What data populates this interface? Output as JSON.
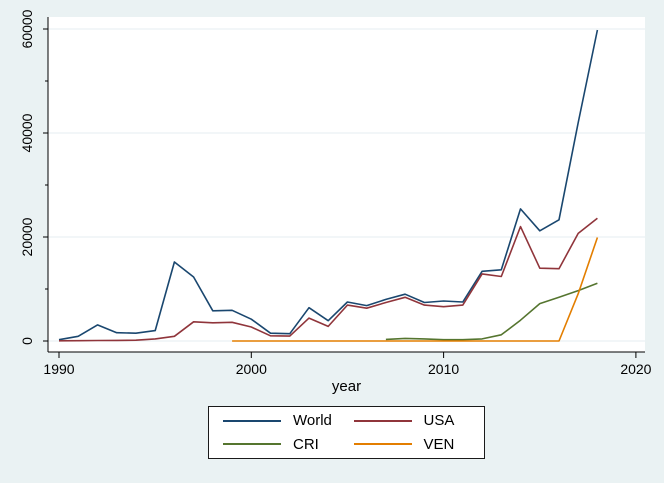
{
  "figure": {
    "background": "#eaf2f3",
    "plot_background": "#ffffff",
    "grid_color": "#e6edf0",
    "axis_color": "#000000",
    "text_color": "#000000",
    "legend_border_color": "#1a1a1a"
  },
  "chart_data": {
    "type": "line",
    "title": "",
    "xlabel": "year",
    "ylabel": "",
    "xlim": [
      1990,
      2020
    ],
    "ylim": [
      0,
      60000
    ],
    "x_ticks": [
      1990,
      2000,
      2010,
      2020
    ],
    "y_ticks": [
      0,
      20000,
      40000,
      60000
    ],
    "y_minor_ticks": [
      10000,
      30000,
      50000
    ],
    "grid": true,
    "legend_position": "bottom-center-boxed",
    "x": [
      1990,
      1991,
      1992,
      1993,
      1994,
      1995,
      1996,
      1997,
      1998,
      1999,
      2000,
      2001,
      2002,
      2003,
      2004,
      2005,
      2006,
      2007,
      2008,
      2009,
      2010,
      2011,
      2012,
      2013,
      2014,
      2015,
      2016,
      2017,
      2018
    ],
    "series": [
      {
        "name": "World",
        "color": "#1a476f",
        "values": [
          250,
          900,
          3100,
          1600,
          1500,
          2000,
          15200,
          12300,
          5800,
          5900,
          4200,
          1500,
          1400,
          6400,
          3900,
          7500,
          6800,
          8000,
          9000,
          7400,
          7700,
          7500,
          13400,
          13700,
          25400,
          21200,
          23300,
          42000,
          59800
        ]
      },
      {
        "name": "USA",
        "color": "#90353b",
        "values": [
          30,
          60,
          90,
          110,
          150,
          400,
          900,
          3700,
          3500,
          3600,
          2700,
          1000,
          950,
          4400,
          2800,
          6900,
          6300,
          7400,
          8400,
          6900,
          6600,
          6900,
          12900,
          12400,
          22000,
          14000,
          13900,
          20700,
          23600
        ]
      },
      {
        "name": "CRI",
        "color": "#55752f",
        "values": [
          null,
          null,
          null,
          null,
          null,
          null,
          null,
          null,
          null,
          null,
          null,
          null,
          null,
          null,
          null,
          null,
          null,
          300,
          500,
          400,
          250,
          250,
          400,
          1200,
          4000,
          7200,
          8400,
          9700,
          11100
        ]
      },
      {
        "name": "VEN",
        "color": "#e37e00",
        "values": [
          null,
          null,
          null,
          null,
          null,
          null,
          null,
          null,
          null,
          0,
          0,
          0,
          0,
          0,
          0,
          0,
          0,
          0,
          0,
          0,
          0,
          0,
          0,
          0,
          0,
          0,
          0,
          9100,
          19900
        ]
      }
    ]
  }
}
